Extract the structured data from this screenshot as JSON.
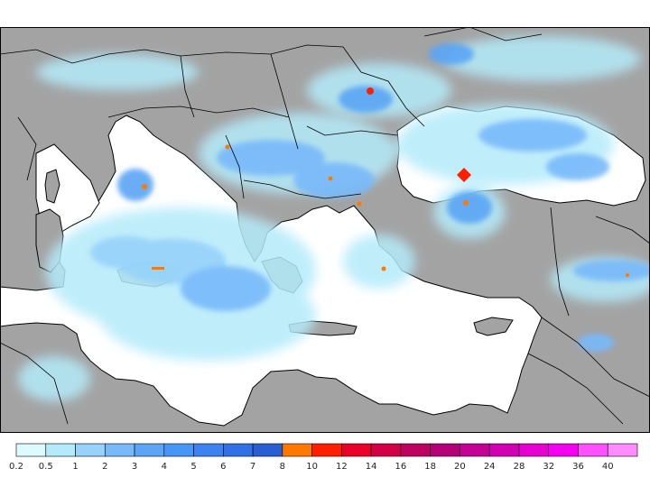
{
  "map": {
    "colors": {
      "land": "#a3a3a3",
      "sea": "#ffffff",
      "border": "#000000"
    }
  },
  "legend": {
    "bins": [
      {
        "label": "0.2",
        "color": "#dcfaff"
      },
      {
        "label": "0.5",
        "color": "#b4ebfa"
      },
      {
        "label": "1",
        "color": "#96d2fa"
      },
      {
        "label": "2",
        "color": "#78b9fa"
      },
      {
        "label": "3",
        "color": "#5aa5f5"
      },
      {
        "label": "4",
        "color": "#4696f5"
      },
      {
        "label": "5",
        "color": "#3c82f0"
      },
      {
        "label": "6",
        "color": "#3270e6"
      },
      {
        "label": "7",
        "color": "#2a5fd2"
      },
      {
        "label": "8",
        "color": "#ff7800"
      },
      {
        "label": "10",
        "color": "#ff1e00"
      },
      {
        "label": "12",
        "color": "#eb0028"
      },
      {
        "label": "14",
        "color": "#d20046"
      },
      {
        "label": "16",
        "color": "#be005f"
      },
      {
        "label": "18",
        "color": "#b40078"
      },
      {
        "label": "20",
        "color": "#c30096"
      },
      {
        "label": "24",
        "color": "#d200b4"
      },
      {
        "label": "28",
        "color": "#e600d2"
      },
      {
        "label": "32",
        "color": "#f500f0"
      },
      {
        "label": "36",
        "color": "#ff50ff"
      },
      {
        "label": "40",
        "color": "#ff8cff"
      }
    ]
  }
}
